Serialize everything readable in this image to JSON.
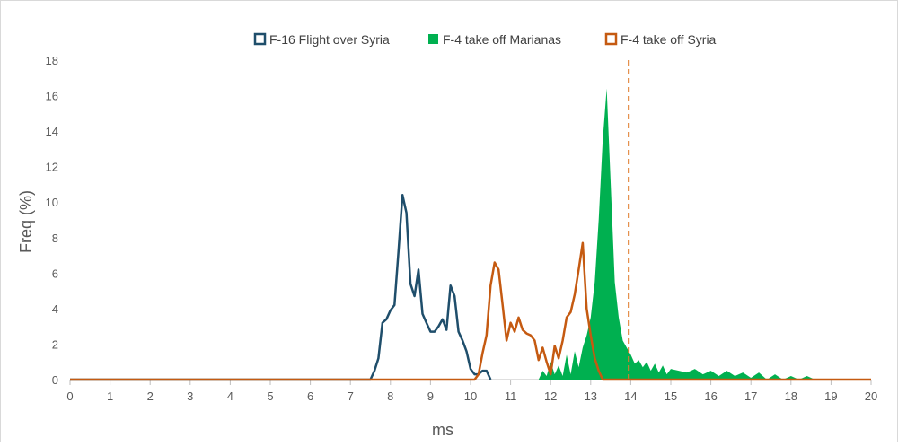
{
  "chart_data": {
    "type": "line",
    "title": "",
    "xlabel": "ms",
    "ylabel": "Freq (%)",
    "xlim": [
      0,
      20
    ],
    "ylim": [
      0,
      18
    ],
    "x_ticks": [
      0,
      1,
      2,
      3,
      4,
      5,
      6,
      7,
      8,
      9,
      10,
      11,
      12,
      13,
      14,
      15,
      16,
      17,
      18,
      19,
      20
    ],
    "y_ticks": [
      0,
      2,
      4,
      6,
      8,
      10,
      12,
      14,
      16,
      18
    ],
    "grid": false,
    "legend_position": "top",
    "threshold": {
      "x": 13.95,
      "color": "#e07b2a",
      "style": "dashed"
    },
    "series": [
      {
        "name": "F-16 Flight over Syria",
        "kind": "line",
        "color": "#1f4e6b",
        "x": [
          0,
          7.5,
          7.6,
          7.7,
          7.8,
          7.9,
          8.0,
          8.1,
          8.2,
          8.3,
          8.4,
          8.5,
          8.6,
          8.7,
          8.8,
          8.9,
          9.0,
          9.1,
          9.2,
          9.3,
          9.4,
          9.5,
          9.6,
          9.7,
          9.8,
          9.9,
          10.0,
          10.1,
          10.2,
          10.3,
          10.4,
          10.5
        ],
        "y": [
          0,
          0,
          0.5,
          1.2,
          3.2,
          3.4,
          3.9,
          4.2,
          7.2,
          10.4,
          9.4,
          5.4,
          4.7,
          6.2,
          3.7,
          3.2,
          2.7,
          2.7,
          3.0,
          3.4,
          2.8,
          5.3,
          4.7,
          2.7,
          2.2,
          1.6,
          0.6,
          0.3,
          0.3,
          0.5,
          0.5,
          0
        ]
      },
      {
        "name": "F-4 take off Marianas",
        "kind": "area",
        "color": "#00b050",
        "x": [
          11.7,
          11.8,
          11.9,
          12.0,
          12.1,
          12.2,
          12.3,
          12.4,
          12.5,
          12.6,
          12.7,
          12.8,
          12.9,
          13.0,
          13.1,
          13.2,
          13.3,
          13.4,
          13.5,
          13.6,
          13.7,
          13.8,
          13.9,
          14.0,
          14.1,
          14.2,
          14.3,
          14.4,
          14.5,
          14.6,
          14.7,
          14.8,
          14.9,
          15.0,
          15.2,
          15.4,
          15.6,
          15.8,
          16.0,
          16.2,
          16.4,
          16.6,
          16.8,
          17.0,
          17.2,
          17.4,
          17.6,
          17.8,
          18.0,
          18.2,
          18.4,
          18.6,
          18.8
        ],
        "y": [
          0,
          0.5,
          0.2,
          1.0,
          0.3,
          0.8,
          0.2,
          1.4,
          0.3,
          1.6,
          0.7,
          1.8,
          2.5,
          3.5,
          5.5,
          9.0,
          13.5,
          16.4,
          11.0,
          5.5,
          3.5,
          2.2,
          1.8,
          1.4,
          0.9,
          1.1,
          0.7,
          1.0,
          0.5,
          0.9,
          0.4,
          0.8,
          0.3,
          0.6,
          0.5,
          0.4,
          0.6,
          0.3,
          0.5,
          0.2,
          0.5,
          0.2,
          0.4,
          0.1,
          0.4,
          0,
          0.3,
          0,
          0.2,
          0,
          0.2,
          0,
          0
        ]
      },
      {
        "name": "F-4 take off Syria",
        "kind": "line",
        "color": "#c55a11",
        "x": [
          0,
          10.1,
          10.2,
          10.3,
          10.4,
          10.5,
          10.6,
          10.7,
          10.8,
          10.9,
          11.0,
          11.1,
          11.2,
          11.3,
          11.4,
          11.5,
          11.6,
          11.7,
          11.8,
          11.9,
          12.0,
          12.1,
          12.2,
          12.3,
          12.4,
          12.5,
          12.6,
          12.7,
          12.8,
          12.9,
          13.0,
          13.1,
          13.2,
          13.3,
          13.4,
          13.5,
          20
        ],
        "y": [
          0,
          0,
          0.3,
          1.5,
          2.5,
          5.3,
          6.6,
          6.2,
          4.2,
          2.2,
          3.2,
          2.7,
          3.5,
          2.8,
          2.6,
          2.5,
          2.2,
          1.1,
          1.8,
          1.0,
          0.3,
          1.9,
          1.2,
          2.2,
          3.5,
          3.8,
          4.8,
          6.2,
          7.7,
          4.0,
          2.5,
          1.2,
          0.5,
          0,
          0,
          0,
          0
        ]
      }
    ]
  }
}
